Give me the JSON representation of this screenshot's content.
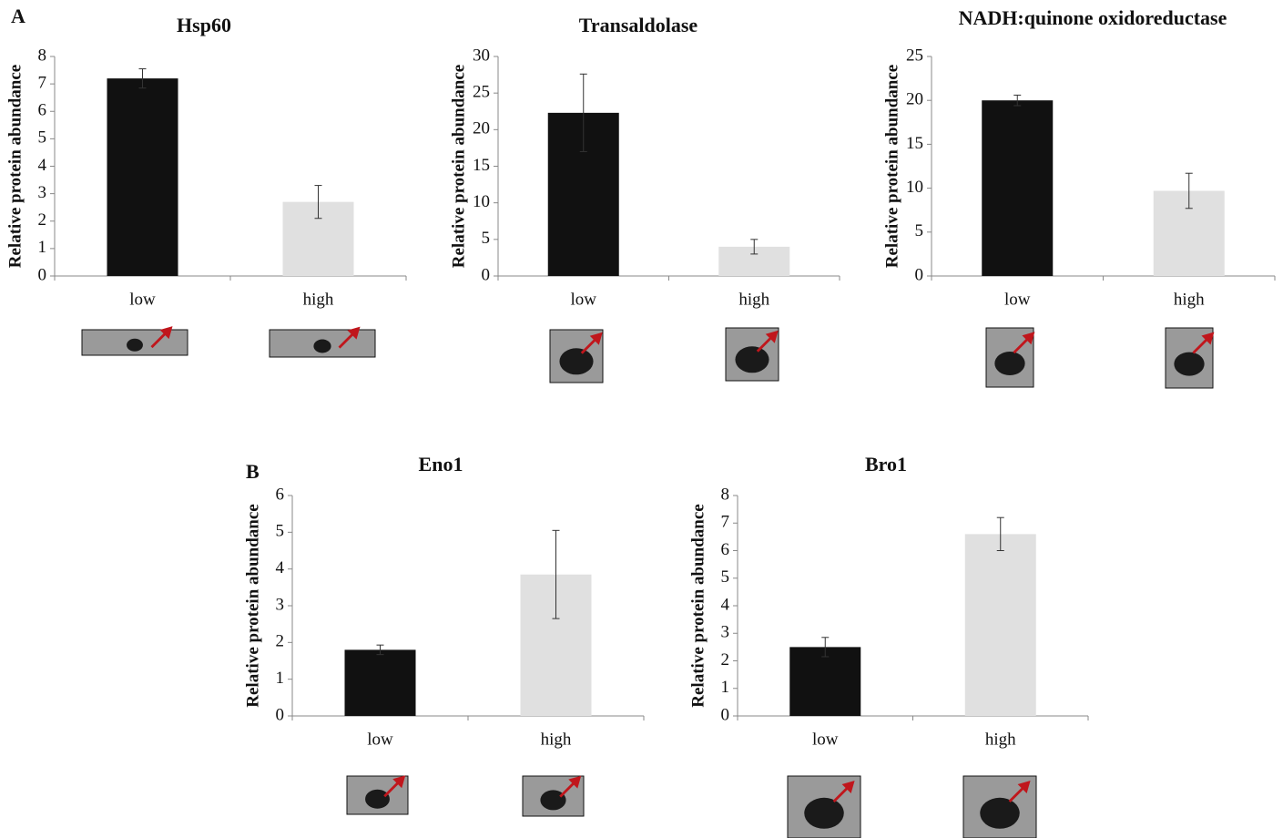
{
  "panel_labels": [
    "A",
    "B"
  ],
  "chart_data": [
    {
      "type": "bar",
      "title": "Hsp60",
      "ylabel": "Relative protein abundance",
      "categories": [
        "low",
        "high"
      ],
      "values": [
        7.2,
        2.7
      ],
      "errors": [
        0.35,
        0.6
      ],
      "colors": [
        "#111111",
        "#e0e0e0"
      ],
      "ylim": [
        0,
        8
      ],
      "yticks": [
        0,
        1,
        2,
        3,
        4,
        5,
        6,
        7,
        8
      ]
    },
    {
      "type": "bar",
      "title": "Transaldolase",
      "ylabel": "Relative protein abundance",
      "categories": [
        "low",
        "high"
      ],
      "values": [
        22.3,
        4.0
      ],
      "errors": [
        5.3,
        1.0
      ],
      "colors": [
        "#111111",
        "#e0e0e0"
      ],
      "ylim": [
        0,
        30
      ],
      "yticks": [
        0,
        5,
        10,
        15,
        20,
        25,
        30
      ]
    },
    {
      "type": "bar",
      "title": "NADH:quinone oxidoreductase",
      "ylabel": "Relative protein abundance",
      "categories": [
        "low",
        "high"
      ],
      "values": [
        20.0,
        9.7
      ],
      "errors": [
        0.6,
        2.0
      ],
      "colors": [
        "#111111",
        "#e0e0e0"
      ],
      "ylim": [
        0,
        25
      ],
      "yticks": [
        0,
        5,
        10,
        15,
        20,
        25
      ]
    },
    {
      "type": "bar",
      "title": "Eno1",
      "ylabel": "Relative protein abundance",
      "categories": [
        "low",
        "high"
      ],
      "values": [
        1.8,
        3.85
      ],
      "errors": [
        0.13,
        1.2
      ],
      "colors": [
        "#111111",
        "#e0e0e0"
      ],
      "ylim": [
        0,
        6
      ],
      "yticks": [
        0,
        1,
        2,
        3,
        4,
        5,
        6
      ]
    },
    {
      "type": "bar",
      "title": "Bro1",
      "ylabel": "Relative protein abundance",
      "categories": [
        "low",
        "high"
      ],
      "values": [
        2.5,
        6.6
      ],
      "errors": [
        0.35,
        0.6
      ],
      "colors": [
        "#111111",
        "#e0e0e0"
      ],
      "ylim": [
        0,
        8
      ],
      "yticks": [
        0,
        1,
        2,
        3,
        4,
        5,
        6,
        7,
        8
      ]
    }
  ]
}
